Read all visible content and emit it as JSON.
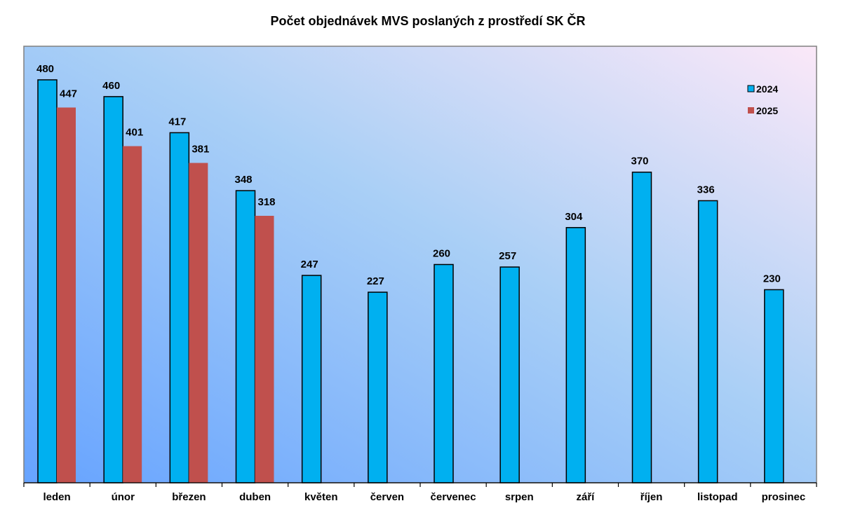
{
  "chart_data": {
    "type": "bar",
    "title": "Počet objednávek MVS poslaných z prostředí SK ČR",
    "xlabel": "",
    "ylabel": "",
    "ylim": [
      0,
      520
    ],
    "grid": false,
    "legend_position": "top-right",
    "categories": [
      "leden",
      "únor",
      "březen",
      "duben",
      "květen",
      "červen",
      "červenec",
      "srpen",
      "září",
      "říjen",
      "listopad",
      "prosinec"
    ],
    "series": [
      {
        "name": "2024",
        "color": "#00B0F0",
        "values": [
          480,
          460,
          417,
          348,
          247,
          227,
          260,
          257,
          304,
          370,
          336,
          230
        ]
      },
      {
        "name": "2025",
        "color": "#C0504D",
        "values": [
          447,
          401,
          381,
          318,
          null,
          null,
          null,
          null,
          null,
          null,
          null,
          null
        ]
      }
    ]
  }
}
